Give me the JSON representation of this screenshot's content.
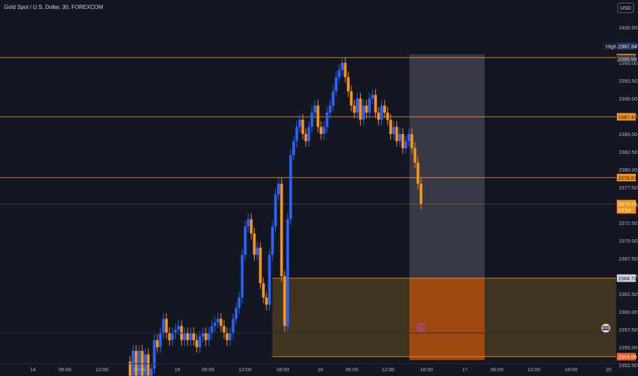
{
  "header": {
    "title": "Gold Spot / U.S. Dollar, 30, FOREXCOM",
    "currency": "USD"
  },
  "colors": {
    "background": "#131722",
    "up": "#2962ff",
    "down": "#f7931a",
    "level_line": "#f7931a",
    "gray_zone": "#3e414b",
    "orange_zone": "#a34a12"
  },
  "chart_data": {
    "type": "candlestick",
    "title": "Gold Spot / U.S. Dollar, 30, FOREXCOM",
    "ylim": [
      2350.5,
      2402.5
    ],
    "y_ticks": [
      "2400.00",
      "2397.50",
      "2395.00",
      "2392.50",
      "2390.00",
      "2387.50",
      "2385.00",
      "2382.50",
      "2380.00",
      "2377.50",
      "2375.00",
      "2372.50",
      "2370.00",
      "2367.50",
      "2365.00",
      "2362.50",
      "2360.00",
      "2357.50",
      "2355.00",
      "2352.50"
    ],
    "x_ticks": [
      "14",
      "06:00",
      "12:00",
      "18:00",
      "15",
      "06:00",
      "12:00",
      "18:00",
      "16",
      "06:00",
      "12:00",
      "18:00",
      "17",
      "06:00",
      "12:00",
      "18:00",
      "20"
    ],
    "closes": [
      2351,
      2354.5,
      2351,
      2354.5,
      2351,
      2354,
      2351,
      2352,
      2356,
      2355,
      2357,
      2359,
      2357,
      2356,
      2357,
      2357.5,
      2358,
      2356,
      2357,
      2356,
      2357,
      2356,
      2355,
      2356.5,
      2357,
      2356,
      2357,
      2358,
      2358.5,
      2359,
      2358,
      2357,
      2356,
      2357,
      2359,
      2360.5,
      2362,
      2368,
      2372,
      2373,
      2371,
      2368,
      2369,
      2364,
      2362,
      2361,
      2368,
      2372,
      2376.5,
      2378,
      2365,
      2358,
      2373,
      2382,
      2384,
      2386,
      2387,
      2385,
      2384,
      2386,
      2388,
      2389,
      2386,
      2385,
      2386,
      2388,
      2389,
      2391,
      2393,
      2394,
      2395,
      2393,
      2391,
      2389,
      2388,
      2390,
      2387,
      2389,
      2388,
      2390,
      2390.5,
      2388,
      2387,
      2389,
      2388,
      2387,
      2385,
      2386,
      2384,
      2385,
      2383,
      2384,
      2385,
      2383,
      2381,
      2378,
      2375.2
    ],
    "levels": [
      {
        "label": "2395.75",
        "value": 2395.75
      },
      {
        "label": "2387.41",
        "value": 2387.41
      },
      {
        "label": "2378.87",
        "value": 2378.87
      },
      {
        "label": "2364.72",
        "value": 2364.72
      },
      {
        "label": "2353.68",
        "value": 2353.68
      }
    ],
    "high_tag": {
      "label": "High",
      "value": "2397.34",
      "price": 2397.34
    },
    "extra_tag": {
      "value": "2395.59",
      "price": 2395.59
    },
    "current_price": {
      "value": "2375.15",
      "countdown": "19:54",
      "price": 2375.15
    },
    "zones": [
      {
        "name": "gray-zone",
        "from": 2364.72,
        "to": 2396.2
      },
      {
        "name": "orange-box",
        "from": 2353.68,
        "to": 2364.72
      },
      {
        "name": "orange-zone",
        "from": 2353.2,
        "to": 2364.72
      }
    ],
    "grid": false,
    "legend": "none"
  }
}
